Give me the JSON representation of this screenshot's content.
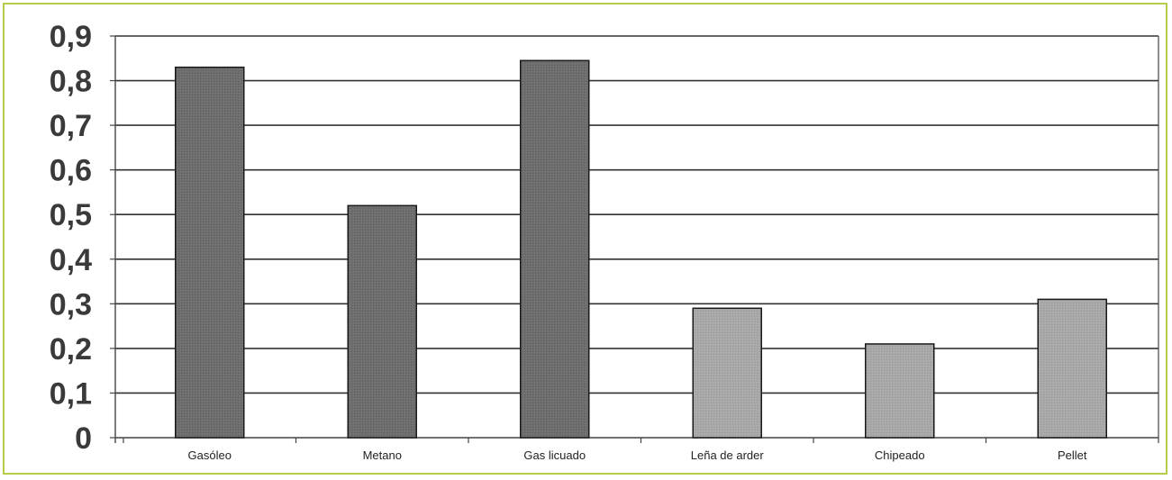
{
  "chart_data": {
    "type": "bar",
    "categories": [
      "Gasóleo",
      "Metano",
      "Gas licuado",
      "Leña de arder",
      "Chipeado",
      "Pellet"
    ],
    "values": [
      0.83,
      0.52,
      0.845,
      0.29,
      0.21,
      0.31
    ],
    "bar_colors": [
      "#6e6e6e",
      "#6e6e6e",
      "#6e6e6e",
      "#a8a8a8",
      "#a8a8a8",
      "#a8a8a8"
    ],
    "ylim": [
      0,
      0.9
    ],
    "yticks": [
      "0",
      "0,1",
      "0,2",
      "0,3",
      "0,4",
      "0,5",
      "0,6",
      "0,7",
      "0,8",
      "0,9"
    ],
    "grid": true,
    "title": "",
    "xlabel": "",
    "ylabel": ""
  },
  "colors": {
    "frame_border": "#b8cc4a",
    "gridline": "#333333",
    "axis": "#444444"
  }
}
